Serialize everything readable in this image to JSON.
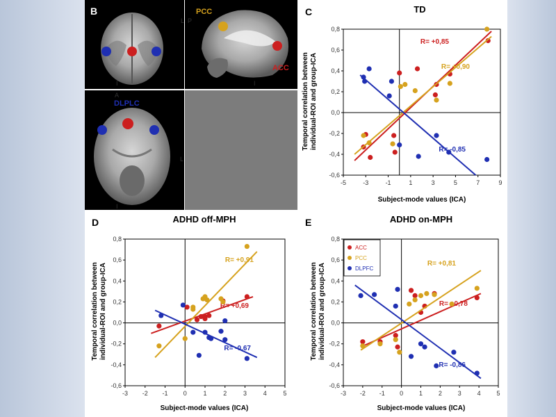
{
  "colors": {
    "acc": "#cc1f1f",
    "pcc": "#d6a21e",
    "dlpfc": "#1f2fb2"
  },
  "brain_panel": {
    "letter": "B",
    "labels": {
      "pcc": "PCC",
      "acc": "ACC",
      "dlpfc": "DLPLC"
    },
    "orient": {
      "l1": "L",
      "p": "P",
      "i1": "I",
      "i2": "I",
      "a": "A",
      "l2": "L",
      "i3": "I"
    }
  },
  "chart_data": [
    {
      "id": "C",
      "type": "scatter",
      "title": "TD",
      "xlabel": "Subject-mode values (ICA)",
      "ylabel_lines": [
        "Temporal correlation between",
        "individual-ROI and group-ICA"
      ],
      "xlim": [
        -5,
        9
      ],
      "ylim": [
        -0.6,
        0.8
      ],
      "xticks": [
        "-5",
        "-3",
        "-1",
        "1",
        "3",
        "5",
        "7",
        "9"
      ],
      "yticks": [
        "-0,6",
        "-0,4",
        "-0,2",
        "0,0",
        "0,2",
        "0,4",
        "0,6",
        "0,8"
      ],
      "series": [
        {
          "name": "ACC",
          "color_key": "acc",
          "r_label": "R= +0,85",
          "points": [
            [
              -3.2,
              -0.33
            ],
            [
              -3.0,
              -0.21
            ],
            [
              -2.6,
              -0.43
            ],
            [
              -0.5,
              -0.22
            ],
            [
              -0.4,
              -0.38
            ],
            [
              0,
              0.38
            ],
            [
              1.6,
              0.42
            ],
            [
              3.2,
              0.17
            ],
            [
              3.3,
              0.27
            ],
            [
              4.5,
              0.37
            ],
            [
              7.9,
              0.69
            ]
          ],
          "line": [
            [
              -4,
              -0.46
            ],
            [
              8.2,
              0.78
            ]
          ]
        },
        {
          "name": "PCC",
          "color_key": "pcc",
          "r_label": "R= +0,90",
          "points": [
            [
              -3.2,
              -0.22
            ],
            [
              -2.7,
              -0.29
            ],
            [
              -0.6,
              -0.3
            ],
            [
              0.1,
              0.25
            ],
            [
              0.5,
              0.27
            ],
            [
              1.4,
              0.21
            ],
            [
              3.3,
              0.12
            ],
            [
              4.5,
              0.28
            ],
            [
              7.8,
              0.8
            ]
          ],
          "line": [
            [
              -4,
              -0.4
            ],
            [
              8.2,
              0.73
            ]
          ]
        },
        {
          "name": "DLPFC",
          "color_key": "dlpfc",
          "r_label": "R= -0,85",
          "points": [
            [
              -3.2,
              0.34
            ],
            [
              -3.1,
              0.3
            ],
            [
              -2.7,
              0.42
            ],
            [
              -0.9,
              0.16
            ],
            [
              -0.7,
              0.3
            ],
            [
              0,
              -0.31
            ],
            [
              1.7,
              -0.42
            ],
            [
              3.3,
              -0.22
            ],
            [
              4.4,
              -0.38
            ],
            [
              7.8,
              -0.45
            ]
          ],
          "line": [
            [
              -3.5,
              0.36
            ],
            [
              6.8,
              -0.6
            ]
          ]
        }
      ]
    },
    {
      "id": "D",
      "type": "scatter",
      "title": "ADHD off-MPH",
      "xlabel": "Subject-mode values (ICA)",
      "ylabel_lines": [
        "Temporal correlation between",
        "individual-ROI and group-ICA"
      ],
      "xlim": [
        -3,
        5
      ],
      "ylim": [
        -0.6,
        0.8
      ],
      "xticks": [
        "-3",
        "-2",
        "-1",
        "0",
        "1",
        "2",
        "3",
        "4",
        "5"
      ],
      "yticks": [
        "-0,6",
        "-0,4",
        "-0,2",
        "0,0",
        "0,2",
        "0,4",
        "0,6",
        "0,8"
      ],
      "series": [
        {
          "name": "ACC",
          "color_key": "acc",
          "r_label": "R= +0,69",
          "points": [
            [
              -1.3,
              -0.03
            ],
            [
              0.6,
              0.03
            ],
            [
              0.8,
              0.06
            ],
            [
              1.0,
              0.06
            ],
            [
              1.2,
              0.07
            ],
            [
              1.9,
              0.21
            ],
            [
              1.0,
              0.04
            ],
            [
              3.1,
              0.25
            ],
            [
              0.1,
              0.15
            ]
          ],
          "line": [
            [
              -1.7,
              -0.1
            ],
            [
              3.4,
              0.25
            ]
          ]
        },
        {
          "name": "PCC",
          "color_key": "pcc",
          "r_label": "R= +0,91",
          "points": [
            [
              -1.3,
              -0.22
            ],
            [
              0,
              -0.15
            ],
            [
              0.4,
              0.15
            ],
            [
              0.4,
              0.13
            ],
            [
              0.9,
              0.23
            ],
            [
              1.0,
              0.25
            ],
            [
              1.1,
              0.22
            ],
            [
              1.8,
              0.23
            ],
            [
              1.9,
              0.2
            ],
            [
              3.1,
              0.73
            ]
          ],
          "line": [
            [
              -1.5,
              -0.33
            ],
            [
              3.6,
              0.68
            ]
          ]
        },
        {
          "name": "DLPFC",
          "color_key": "dlpfc",
          "r_label": "R= -0,67",
          "points": [
            [
              -1.2,
              0.07
            ],
            [
              -0.1,
              0.17
            ],
            [
              0.4,
              -0.09
            ],
            [
              0.7,
              -0.31
            ],
            [
              1.0,
              -0.09
            ],
            [
              1.2,
              -0.14
            ],
            [
              1.3,
              -0.15
            ],
            [
              1.8,
              -0.08
            ],
            [
              2.0,
              -0.16
            ],
            [
              3.1,
              -0.34
            ],
            [
              2.0,
              0.02
            ]
          ],
          "line": [
            [
              -1.5,
              0.12
            ],
            [
              3.6,
              -0.33
            ]
          ]
        }
      ]
    },
    {
      "id": "E",
      "type": "scatter",
      "title": "ADHD on-MPH",
      "xlabel": "Subject-mode values (ICA)",
      "ylabel_lines": [
        "Temporal correlation between",
        "individual-ROI and group-ICA"
      ],
      "xlim": [
        -3,
        5
      ],
      "ylim": [
        -0.6,
        0.8
      ],
      "xticks": [
        "-3",
        "-2",
        "-1",
        "0",
        "1",
        "2",
        "3",
        "4",
        "5"
      ],
      "yticks": [
        "-0,6",
        "-0,4",
        "-0,2",
        "0,0",
        "0,2",
        "0,4",
        "0,6",
        "0,8"
      ],
      "legend": [
        "ACC",
        "PCC",
        "DLPFC"
      ],
      "series": [
        {
          "name": "ACC",
          "color_key": "acc",
          "r_label": "R= +0,78",
          "points": [
            [
              -2.0,
              -0.18
            ],
            [
              -1.1,
              -0.18
            ],
            [
              -0.3,
              -0.12
            ],
            [
              -0.2,
              -0.23
            ],
            [
              0.5,
              0.31
            ],
            [
              1.0,
              0.1
            ],
            [
              1.2,
              0.16
            ],
            [
              1.7,
              0.28
            ],
            [
              3.9,
              0.24
            ],
            [
              0.7,
              0.26
            ]
          ],
          "line": [
            [
              -2.1,
              -0.23
            ],
            [
              4.1,
              0.28
            ]
          ]
        },
        {
          "name": "PCC",
          "color_key": "pcc",
          "r_label": "R= +0,81",
          "points": [
            [
              -2.0,
              -0.22
            ],
            [
              -1.1,
              -0.2
            ],
            [
              -0.3,
              -0.16
            ],
            [
              -0.1,
              -0.28
            ],
            [
              0.4,
              0.18
            ],
            [
              0.7,
              0.22
            ],
            [
              1.0,
              0.26
            ],
            [
              1.3,
              0.28
            ],
            [
              1.7,
              0.27
            ],
            [
              3.9,
              0.33
            ],
            [
              2.6,
              0.18
            ]
          ],
          "line": [
            [
              -2.1,
              -0.26
            ],
            [
              4.1,
              0.5
            ]
          ]
        },
        {
          "name": "DLPFC",
          "color_key": "dlpfc",
          "r_label": "R= -0,86",
          "points": [
            [
              -2.1,
              0.26
            ],
            [
              -1.4,
              0.27
            ],
            [
              -0.3,
              0.16
            ],
            [
              -0.2,
              0.32
            ],
            [
              0.5,
              -0.32
            ],
            [
              1.0,
              -0.2
            ],
            [
              1.2,
              -0.23
            ],
            [
              1.8,
              -0.41
            ],
            [
              3.9,
              -0.48
            ],
            [
              2.7,
              -0.28
            ]
          ],
          "line": [
            [
              -2.4,
              0.36
            ],
            [
              4.1,
              -0.53
            ]
          ]
        }
      ]
    }
  ]
}
